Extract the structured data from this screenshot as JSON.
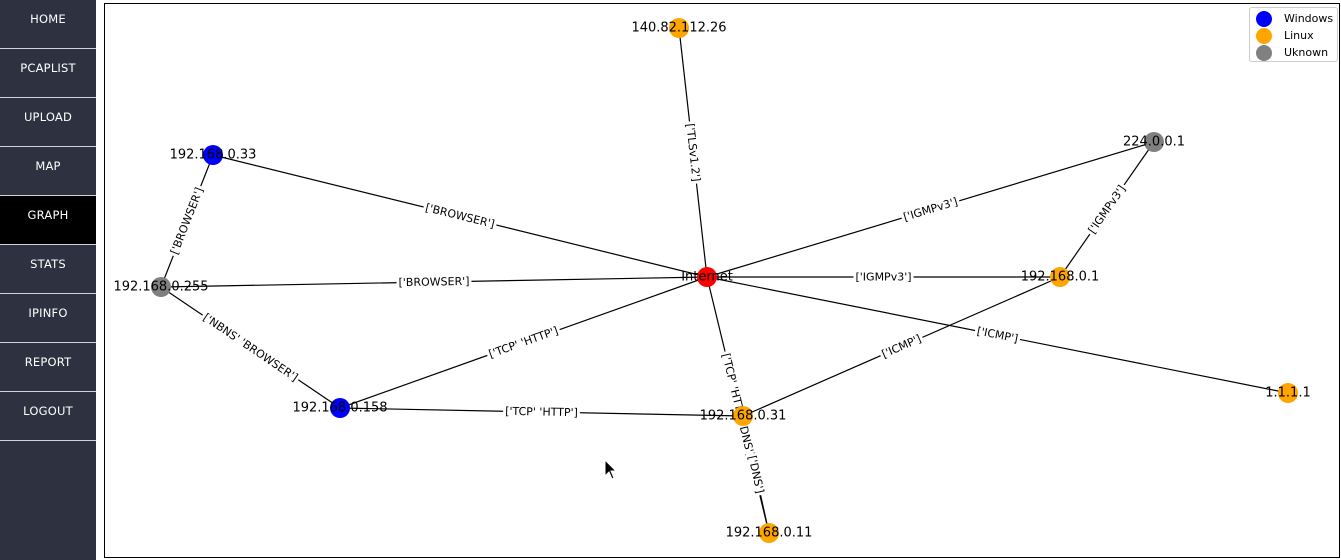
{
  "sidebar": {
    "items": [
      {
        "label": "HOME",
        "name": "home"
      },
      {
        "label": "PCAPLIST",
        "name": "pcaplist"
      },
      {
        "label": "UPLOAD",
        "name": "upload"
      },
      {
        "label": "MAP",
        "name": "map"
      },
      {
        "label": "GRAPH",
        "name": "graph",
        "active": true
      },
      {
        "label": "STATS",
        "name": "stats"
      },
      {
        "label": "IPINFO",
        "name": "ipinfo"
      },
      {
        "label": "REPORT",
        "name": "report"
      },
      {
        "label": "LOGOUT",
        "name": "logout"
      }
    ]
  },
  "legend": {
    "entries": [
      {
        "label": "Windows",
        "color": "#0000ff"
      },
      {
        "label": "Linux",
        "color": "#ffa500"
      },
      {
        "label": "Uknown",
        "color": "#808080"
      }
    ]
  },
  "graph": {
    "nodes": [
      {
        "id": "Internet",
        "label": "Internet",
        "color": "#ff0000"
      },
      {
        "id": "140.82.112.26",
        "label": "140.82.112.26",
        "color": "#ffa500"
      },
      {
        "id": "192.168.0.33",
        "label": "192.168.0.33",
        "color": "#0000ff"
      },
      {
        "id": "224.0.0.1",
        "label": "224.0.0.1",
        "color": "#808080"
      },
      {
        "id": "192.168.0.255",
        "label": "192.168.0.255",
        "color": "#808080"
      },
      {
        "id": "192.168.0.1",
        "label": "192.168.0.1",
        "color": "#ffa500"
      },
      {
        "id": "192.168.0.158",
        "label": "192.168.0.158",
        "color": "#0000ff"
      },
      {
        "id": "192.168.0.31",
        "label": "192.168.0.31",
        "color": "#ffa500"
      },
      {
        "id": "1.1.1.1",
        "label": "1.1.1.1",
        "color": "#ffa500"
      },
      {
        "id": "192.168.0.11",
        "label": "192.168.0.11",
        "color": "#ffa500"
      }
    ],
    "edges": [
      {
        "source": "140.82.112.26",
        "target": "Internet",
        "label": "['TLSv1.2']"
      },
      {
        "source": "192.168.0.33",
        "target": "Internet",
        "label": "['BROWSER']"
      },
      {
        "source": "192.168.0.33",
        "target": "192.168.0.255",
        "label": "['BROWSER']"
      },
      {
        "source": "192.168.0.255",
        "target": "Internet",
        "label": "['BROWSER']"
      },
      {
        "source": "192.168.0.255",
        "target": "192.168.0.158",
        "label": "['NBNS' 'BROWSER']"
      },
      {
        "source": "Internet",
        "target": "224.0.0.1",
        "label": "['IGMPv3']"
      },
      {
        "source": "224.0.0.1",
        "target": "192.168.0.1",
        "label": "['IGMPv3']"
      },
      {
        "source": "Internet",
        "target": "192.168.0.1",
        "label": "['IGMPv3']"
      },
      {
        "source": "Internet",
        "target": "1.1.1.1",
        "label": "['ICMP']"
      },
      {
        "source": "192.168.0.31",
        "target": "192.168.0.1",
        "label": "['ICMP']"
      },
      {
        "source": "192.168.0.158",
        "target": "Internet",
        "label": "['TCP' 'HTTP']"
      },
      {
        "source": "192.168.0.158",
        "target": "192.168.0.31",
        "label": "['TCP' 'HTTP']"
      },
      {
        "source": "Internet",
        "target": "192.168.0.11",
        "label": "['TCP' 'HTTP' 'DNS']"
      },
      {
        "source": "192.168.0.31",
        "target": "192.168.0.11",
        "label": "['DNS']"
      }
    ]
  }
}
